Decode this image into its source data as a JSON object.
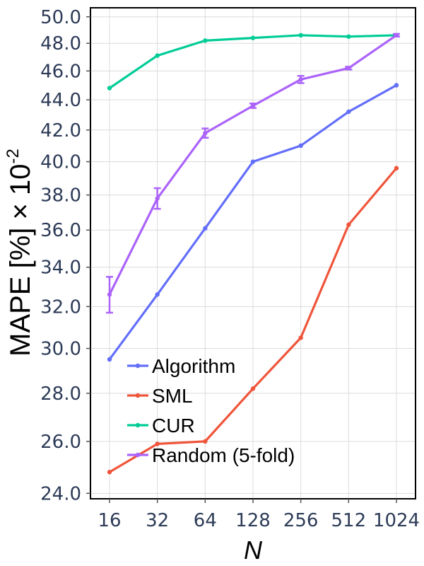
{
  "chart_data": {
    "type": "line",
    "xlabel": "N",
    "ylabel": "MAPE [%] × 10",
    "ylabel_superscript": "-2",
    "x_scale": "log2",
    "y_scale": "log",
    "x": [
      16,
      32,
      64,
      128,
      256,
      512,
      1024
    ],
    "x_tick_labels": [
      "16",
      "32",
      "64",
      "128",
      "256",
      "512",
      "1024"
    ],
    "y_ticks": [
      24.0,
      26.0,
      28.0,
      30.0,
      32.0,
      34.0,
      36.0,
      38.0,
      40.0,
      42.0,
      44.0,
      46.0,
      48.0,
      50.0
    ],
    "y_tick_labels": [
      "24.0",
      "26.0",
      "28.0",
      "30.0",
      "32.0",
      "34.0",
      "36.0",
      "38.0",
      "40.0",
      "42.0",
      "44.0",
      "46.0",
      "48.0",
      "50.0"
    ],
    "ylim": [
      23.8,
      50.7
    ],
    "grid": true,
    "legend_position": "bottom-left",
    "series": [
      {
        "name": "Algorithm",
        "color": "#636efa",
        "values": [
          29.5,
          32.6,
          36.1,
          40.0,
          41.0,
          43.2,
          45.0
        ]
      },
      {
        "name": "SML",
        "color": "#ef553b",
        "values": [
          24.8,
          25.9,
          26.0,
          28.2,
          30.5,
          36.3,
          39.6
        ]
      },
      {
        "name": "CUR",
        "color": "#00cc96",
        "values": [
          44.8,
          47.1,
          48.2,
          48.4,
          48.6,
          48.5,
          48.6
        ]
      },
      {
        "name": "Random (5-fold)",
        "color": "#ab63fa",
        "values": [
          32.6,
          37.8,
          41.8,
          43.6,
          45.4,
          46.2,
          48.6
        ],
        "error": [
          0.9,
          0.6,
          0.3,
          0.15,
          0.25,
          0.1,
          0.1
        ]
      }
    ]
  }
}
